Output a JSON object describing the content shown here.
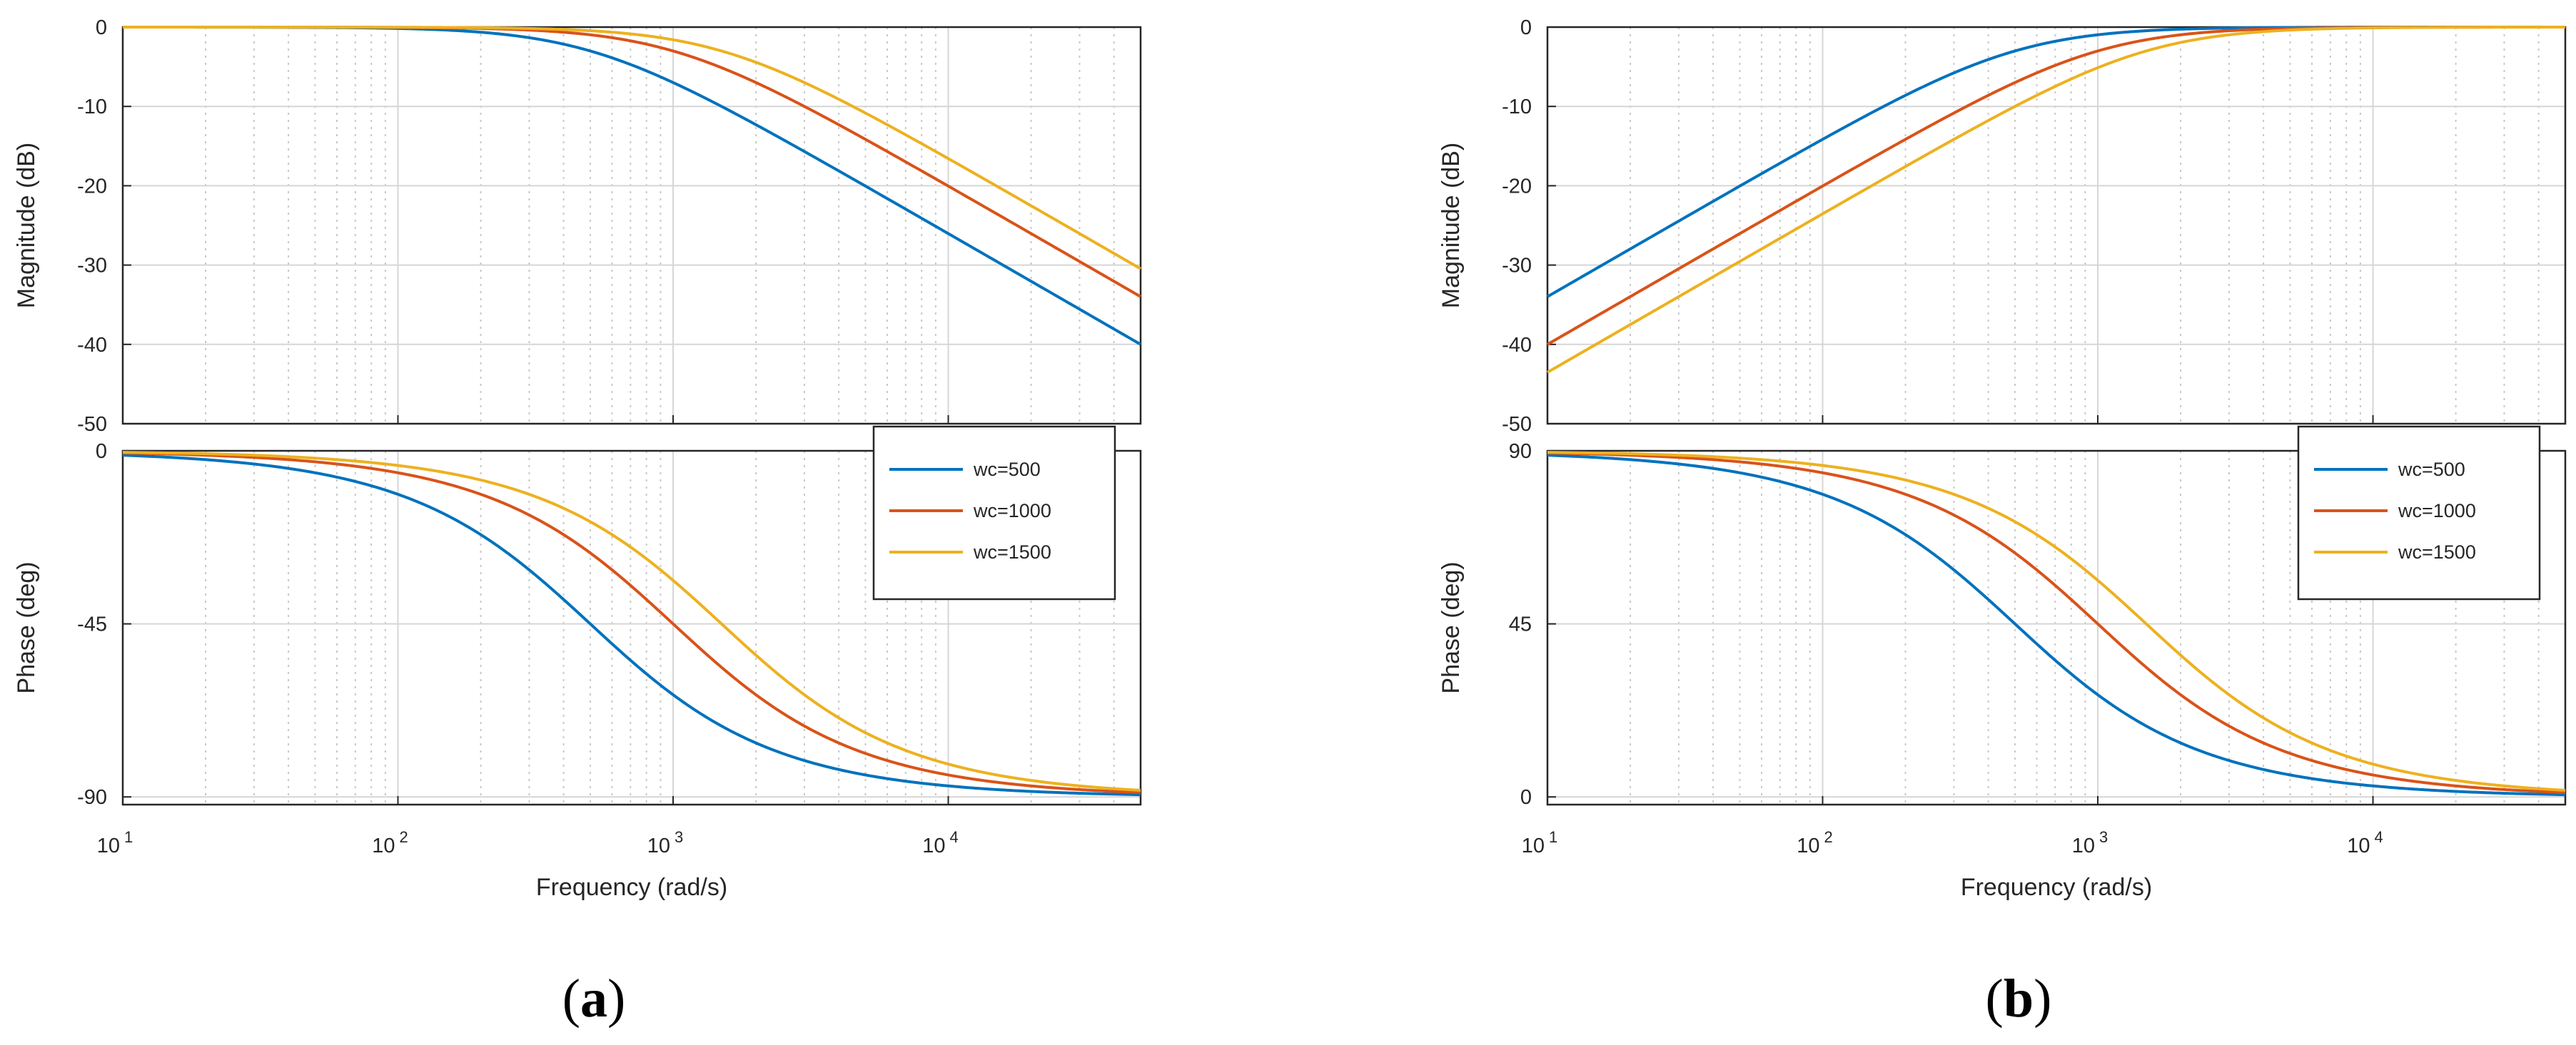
{
  "colors": {
    "wc500": "#0072BD",
    "wc1000": "#D95319",
    "wc1500": "#EDB120",
    "grid": "#d9d9d9",
    "axis": "#262626"
  },
  "chart_data": [
    {
      "id": "a",
      "type": "line",
      "subtype": "bode",
      "filter": "low-pass",
      "caption": {
        "open": "(",
        "letter": "a",
        "close": ")"
      },
      "xlabel": "Frequency  (rad/s)",
      "xscale": "log",
      "xlim": [
        10,
        50000
      ],
      "xticks": [
        {
          "base": "10",
          "exp": "1"
        },
        {
          "base": "10",
          "exp": "2"
        },
        {
          "base": "10",
          "exp": "3"
        },
        {
          "base": "10",
          "exp": "4"
        }
      ],
      "magnitude": {
        "ylabel": "Magnitude (dB)",
        "ylim": [
          -50,
          0
        ],
        "yticks": [
          "0",
          "-10",
          "-20",
          "-30",
          "-40",
          "-50"
        ],
        "grid": true
      },
      "phase": {
        "ylabel": "Phase (deg)",
        "ylim": [
          -92,
          0
        ],
        "yticks": [
          "0",
          "-45",
          "-90"
        ],
        "grid": true
      },
      "legend": {
        "location": "top-right of phase plot",
        "entries": [
          "wc=500",
          "wc=1000",
          "wc=1500"
        ]
      },
      "series": [
        {
          "name": "wc=500",
          "wc": 500,
          "color": "#0072BD"
        },
        {
          "name": "wc=1000",
          "wc": 1000,
          "color": "#D95319"
        },
        {
          "name": "wc=1500",
          "wc": 1500,
          "color": "#EDB120"
        }
      ]
    },
    {
      "id": "b",
      "type": "line",
      "subtype": "bode",
      "filter": "high-pass",
      "caption": {
        "open": "(",
        "letter": "b",
        "close": ")"
      },
      "xlabel": "Frequency  (rad/s)",
      "xscale": "log",
      "xlim": [
        10,
        50000
      ],
      "xticks": [
        {
          "base": "10",
          "exp": "1"
        },
        {
          "base": "10",
          "exp": "2"
        },
        {
          "base": "10",
          "exp": "3"
        },
        {
          "base": "10",
          "exp": "4"
        }
      ],
      "magnitude": {
        "ylabel": "Magnitude (dB)",
        "ylim": [
          -50,
          0
        ],
        "yticks": [
          "0",
          "-10",
          "-20",
          "-30",
          "-40",
          "-50"
        ],
        "grid": true
      },
      "phase": {
        "ylabel": "Phase (deg)",
        "ylim": [
          -2,
          90
        ],
        "yticks": [
          "90",
          "45",
          "0"
        ],
        "grid": true
      },
      "legend": {
        "location": "top-right of phase plot",
        "entries": [
          "wc=500",
          "wc=1000",
          "wc=1500"
        ]
      },
      "series": [
        {
          "name": "wc=500",
          "wc": 500,
          "color": "#0072BD"
        },
        {
          "name": "wc=1000",
          "wc": 1000,
          "color": "#D95319"
        },
        {
          "name": "wc=1500",
          "wc": 1500,
          "color": "#EDB120"
        }
      ]
    }
  ]
}
